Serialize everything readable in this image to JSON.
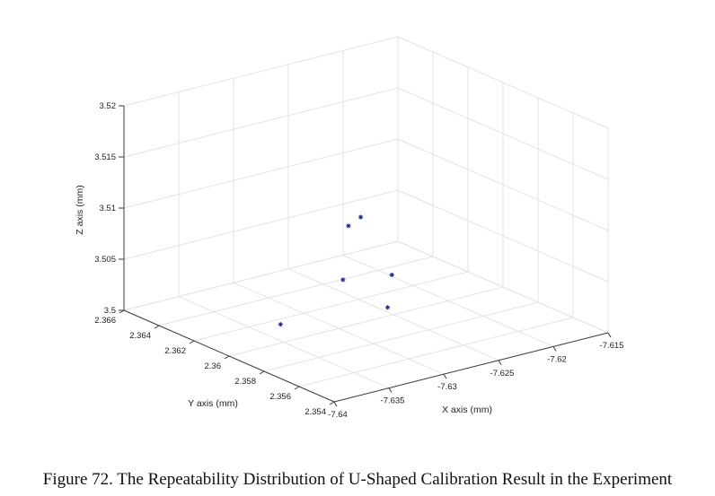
{
  "caption": "Figure 72. The Repeatability Distribution of U-Shaped Calibration Result in the Experiment",
  "chart_data": {
    "type": "scatter",
    "title": "",
    "xlabel": "X axis (mm)",
    "ylabel": "Y axis (mm)",
    "zlabel": "Z axis (mm)",
    "xlim": [
      -7.64,
      -7.615
    ],
    "ylim": [
      2.354,
      2.366
    ],
    "zlim": [
      3.5,
      3.52
    ],
    "x_ticks": [
      "-7.64",
      "-7.635",
      "-7.63",
      "-7.625",
      "-7.62",
      "-7.615"
    ],
    "y_ticks": [
      "2.354",
      "2.356",
      "2.358",
      "2.36",
      "2.362",
      "2.364",
      "2.366"
    ],
    "z_ticks": [
      "3.5",
      "3.505",
      "3.51",
      "3.515",
      "3.52"
    ],
    "grid": true,
    "marker": "*",
    "marker_color": "#1f2a9a",
    "points": [
      {
        "x": -7.6355,
        "y": 2.356,
        "z": 3.5145
      },
      {
        "x": -7.6339,
        "y": 2.3563,
        "z": 3.5147
      },
      {
        "x": -7.6336,
        "y": 2.3575,
        "z": 3.5076
      },
      {
        "x": -7.6332,
        "y": 2.3552,
        "z": 3.5065
      },
      {
        "x": -7.6285,
        "y": 2.3579,
        "z": 3.5064
      },
      {
        "x": -7.6377,
        "y": 2.3585,
        "z": 3.5036
      }
    ]
  }
}
